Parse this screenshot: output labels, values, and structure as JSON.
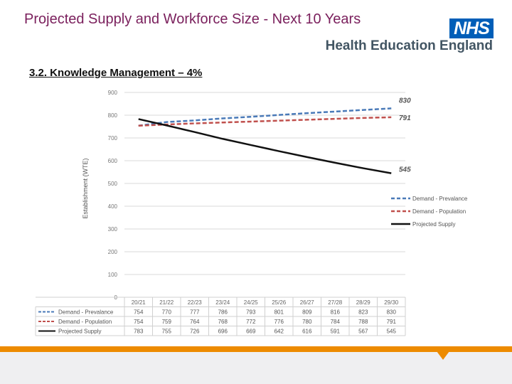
{
  "header": {
    "title": "Projected Supply and Workforce Size - Next 10 Years",
    "logo_text": "NHS",
    "org_name": "Health Education England"
  },
  "section": {
    "subtitle": "3.2. Knowledge Management – 4%"
  },
  "colors": {
    "title": "#7a1f5c",
    "prevalence": "#4a7ab8",
    "population": "#c0504d",
    "supply": "#111111",
    "accent": "#ed8b00",
    "brand": "#005eb8"
  },
  "chart_data": {
    "type": "line",
    "title": "",
    "xlabel": "",
    "ylabel": "Establishment (WTE)",
    "ylim": [
      0,
      900
    ],
    "yticks": [
      0,
      100,
      200,
      300,
      400,
      500,
      600,
      700,
      800,
      900
    ],
    "categories": [
      "20/21",
      "21/22",
      "22/23",
      "23/24",
      "24/25",
      "25/26",
      "26/27",
      "27/28",
      "28/29",
      "29/30"
    ],
    "series": [
      {
        "name": "Demand - Prevalance",
        "style": "dashed",
        "color": "#4a7ab8",
        "values": [
          754,
          770,
          777,
          786,
          793,
          801,
          809,
          816,
          823,
          830
        ],
        "end_label": "830"
      },
      {
        "name": "Demand - Population",
        "style": "dashed",
        "color": "#c0504d",
        "values": [
          754,
          759,
          764,
          768,
          772,
          776,
          780,
          784,
          788,
          791
        ],
        "end_label": "791"
      },
      {
        "name": "Projected Supply",
        "style": "solid",
        "color": "#111111",
        "values": [
          783,
          755,
          726,
          696,
          669,
          642,
          616,
          591,
          567,
          545
        ],
        "end_label": "545"
      }
    ],
    "legend_position": "right",
    "data_table": true
  }
}
